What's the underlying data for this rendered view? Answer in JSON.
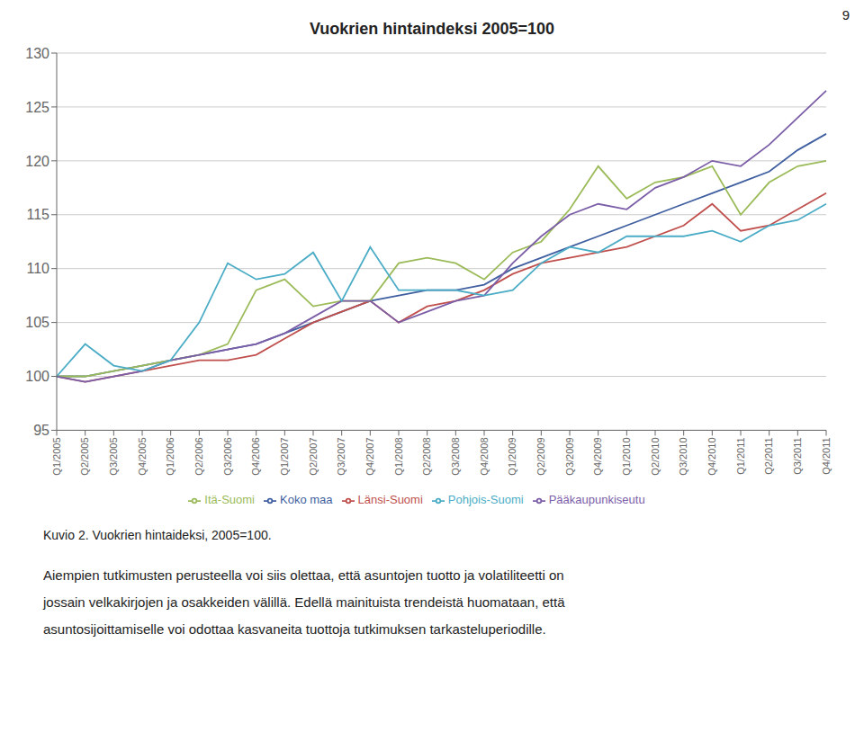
{
  "chart_data": {
    "type": "line",
    "title": "Vuokrien hintaindeksi 2005=100",
    "categories": [
      "Q1/2005",
      "Q2/2005",
      "Q3/2005",
      "Q4/2005",
      "Q1/2006",
      "Q2/2006",
      "Q3/2006",
      "Q4/2006",
      "Q1/2007",
      "Q2/2007",
      "Q3/2007",
      "Q4/2007",
      "Q1/2008",
      "Q2/2008",
      "Q3/2008",
      "Q4/2008",
      "Q1/2009",
      "Q2/2009",
      "Q3/2009",
      "Q4/2009",
      "Q1/2010",
      "Q2/2010",
      "Q3/2010",
      "Q4/2010",
      "Q1/2011",
      "Q2/2011",
      "Q3/2011",
      "Q4/2011"
    ],
    "series": [
      {
        "name": "Koko maa",
        "color": "#3f5fa0",
        "values": [
          100.0,
          100.0,
          100.5,
          101.0,
          101.5,
          102.0,
          102.5,
          103.0,
          104.0,
          105.0,
          106.0,
          107.0,
          107.5,
          108.0,
          108.0,
          108.5,
          110.0,
          111.0,
          112.0,
          113.0,
          114.0,
          115.0,
          116.0,
          117.0,
          118.0,
          119.0,
          121.0,
          122.5
        ]
      },
      {
        "name": "Länsi-Suomi",
        "color": "#c0504d",
        "values": [
          100.0,
          99.5,
          100.0,
          100.5,
          101.0,
          101.5,
          101.5,
          102.0,
          103.5,
          105.0,
          106.0,
          107.0,
          105.0,
          106.5,
          107.0,
          108.0,
          109.5,
          110.5,
          111.0,
          111.5,
          112.0,
          113.0,
          114.0,
          116.0,
          113.5,
          114.0,
          115.5,
          117.0
        ]
      },
      {
        "name": "Itä-Suomi",
        "color": "#9bbb59",
        "values": [
          100.0,
          100.0,
          100.5,
          101.0,
          101.5,
          102.0,
          103.0,
          108.0,
          109.0,
          106.5,
          107.0,
          107.0,
          110.5,
          111.0,
          110.5,
          109.0,
          111.5,
          112.5,
          115.5,
          119.5,
          116.5,
          118.0,
          118.5,
          119.5,
          115.0,
          118.0,
          119.5,
          120.0
        ]
      },
      {
        "name": "Pääkaupunkiseutu",
        "color": "#7b5ea7",
        "values": [
          100.0,
          99.5,
          100.0,
          100.5,
          101.5,
          102.0,
          102.5,
          103.0,
          104.0,
          105.5,
          107.0,
          107.0,
          105.0,
          106.0,
          107.0,
          107.5,
          110.5,
          113.0,
          115.0,
          116.0,
          115.5,
          117.5,
          118.5,
          120.0,
          119.5,
          121.5,
          124.0,
          126.5
        ]
      },
      {
        "name": "Pohjois-Suomi",
        "color": "#4bacc6",
        "values": [
          100.0,
          103.0,
          101.0,
          100.5,
          101.5,
          105.0,
          110.5,
          109.0,
          109.5,
          111.5,
          107.0,
          112.0,
          108.0,
          108.0,
          108.0,
          107.5,
          108.0,
          110.5,
          112.0,
          111.5,
          113.0,
          113.0,
          113.0,
          113.5,
          112.5,
          114.0,
          114.5,
          116.0
        ]
      }
    ],
    "ylim": [
      95,
      130
    ],
    "yticks": [
      95,
      100,
      105,
      110,
      115,
      120,
      125,
      130
    ],
    "grid": true,
    "legend": "bottom",
    "annotations": [
      "9",
      "Kuvio 2. Vuokrien hintaideksi, 2005=100.",
      "Aiempien tutkimusten perusteella voi siis olettaa, että asuntojen tuotto ja volatiliteetti on",
      "jossain velkakirjojen ja osakkeiden välillä. Edellä mainituista trendeistä huomataan, että",
      "asuntosijoittamiselle voi odottaa kasvaneita tuottoja tutkimuksen tarkasteluperiodille."
    ]
  }
}
